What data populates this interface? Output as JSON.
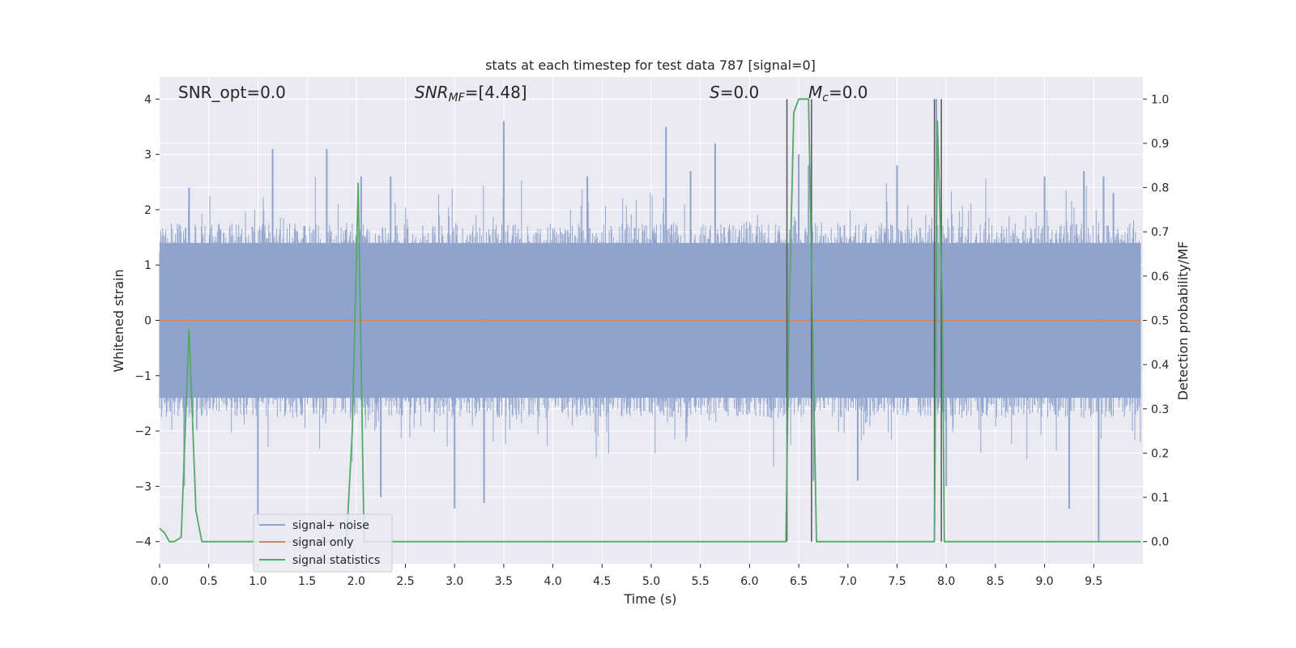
{
  "chart_data": {
    "type": "line",
    "title": "stats at each timestep for test data 787 [signal=0]",
    "xlabel": "Time (s)",
    "ylabel": "Whitened strain",
    "y2label": "Detection probability/MF",
    "xlim": [
      0.0,
      10.0
    ],
    "ylim": [
      -4.4,
      4.4
    ],
    "y2lim": [
      -0.05,
      1.05
    ],
    "xticks": [
      0.0,
      0.5,
      1.0,
      1.5,
      2.0,
      2.5,
      3.0,
      3.5,
      4.0,
      4.5,
      5.0,
      5.5,
      6.0,
      6.5,
      7.0,
      7.5,
      8.0,
      8.5,
      9.0,
      9.5
    ],
    "xtick_labels": [
      "0.0",
      "0.5",
      "1.0",
      "1.5",
      "2.0",
      "2.5",
      "3.0",
      "3.5",
      "4.0",
      "4.5",
      "5.0",
      "5.5",
      "6.0",
      "6.5",
      "7.0",
      "7.5",
      "8.0",
      "8.5",
      "9.0",
      "9.5"
    ],
    "yticks": [
      -4,
      -3,
      -2,
      -1,
      0,
      1,
      2,
      3,
      4
    ],
    "ytick_labels": [
      "−4",
      "−3",
      "−2",
      "−1",
      "0",
      "1",
      "2",
      "3",
      "4"
    ],
    "y2ticks": [
      0.0,
      0.1,
      0.2,
      0.3,
      0.4,
      0.5,
      0.6,
      0.7,
      0.8,
      0.9,
      1.0
    ],
    "y2tick_labels": [
      "0.0",
      "0.1",
      "0.2",
      "0.3",
      "0.4",
      "0.5",
      "0.6",
      "0.7",
      "0.8",
      "0.9",
      "1.0"
    ],
    "grid": true,
    "legend_position": "lower-left",
    "annotations": {
      "snr_opt": "SNR_opt=0.0",
      "snr_mf_sym": "SNR",
      "snr_mf_sub": "MF",
      "snr_mf_val": "=[4.48]",
      "s_sym": "S",
      "s_val": "=0.0",
      "mc_sym": "M",
      "mc_sub": "c",
      "mc_val": "=0.0"
    },
    "series": [
      {
        "name": "signal+ noise",
        "axis": "left",
        "color": "#8fa3cc",
        "style": "noise",
        "envelope_typical": 1.6,
        "peaks": [
          [
            0.3,
            2.4
          ],
          [
            0.25,
            -3.0
          ],
          [
            1.0,
            -3.7
          ],
          [
            1.15,
            3.1
          ],
          [
            1.7,
            3.1
          ],
          [
            2.05,
            2.6
          ],
          [
            2.25,
            -3.2
          ],
          [
            2.35,
            2.6
          ],
          [
            3.0,
            -3.4
          ],
          [
            3.3,
            -3.3
          ],
          [
            3.5,
            3.6
          ],
          [
            4.35,
            2.6
          ],
          [
            5.15,
            3.5
          ],
          [
            5.4,
            2.7
          ],
          [
            5.65,
            3.2
          ],
          [
            6.5,
            3.0
          ],
          [
            6.6,
            2.8
          ],
          [
            6.65,
            -2.9
          ],
          [
            7.1,
            -2.9
          ],
          [
            7.5,
            2.8
          ],
          [
            7.9,
            4.0
          ],
          [
            8.0,
            -3.0
          ],
          [
            9.0,
            2.6
          ],
          [
            9.25,
            -3.4
          ],
          [
            9.4,
            2.7
          ],
          [
            9.55,
            -4.0
          ],
          [
            9.6,
            2.6
          ],
          [
            9.7,
            2.3
          ]
        ]
      },
      {
        "name": "signal only",
        "axis": "left",
        "color": "#dd8452",
        "x": [
          0.0,
          9.98
        ],
        "y": [
          0.0,
          0.0
        ]
      },
      {
        "name": "signal statistics",
        "axis": "right",
        "color": "#55a868",
        "x": [
          0.0,
          0.05,
          0.1,
          0.15,
          0.22,
          0.3,
          0.37,
          0.43,
          0.5,
          1.9,
          1.96,
          2.02,
          2.08,
          2.15,
          6.37,
          6.4,
          6.45,
          6.5,
          6.6,
          6.68,
          7.2,
          7.88,
          7.91,
          7.96,
          7.98,
          8.0,
          9.98
        ],
        "y": [
          0.03,
          0.02,
          0.0,
          0.0,
          0.01,
          0.48,
          0.07,
          0.0,
          0.0,
          0.0,
          0.25,
          0.81,
          0.0,
          0.0,
          0.0,
          0.5,
          0.97,
          1.0,
          1.0,
          0.0,
          0.0,
          0.0,
          0.95,
          0.55,
          0.0,
          0.0,
          0.0
        ]
      }
    ],
    "markers": [
      {
        "x": 6.38,
        "y2_top": 1.0,
        "color": "#555555"
      },
      {
        "x": 6.63,
        "y2_top": 1.0,
        "color": "#555555"
      },
      {
        "x": 7.88,
        "y2_top": 1.0,
        "color": "#555555"
      },
      {
        "x": 7.95,
        "y2_top": 1.0,
        "color": "#555555"
      }
    ]
  }
}
